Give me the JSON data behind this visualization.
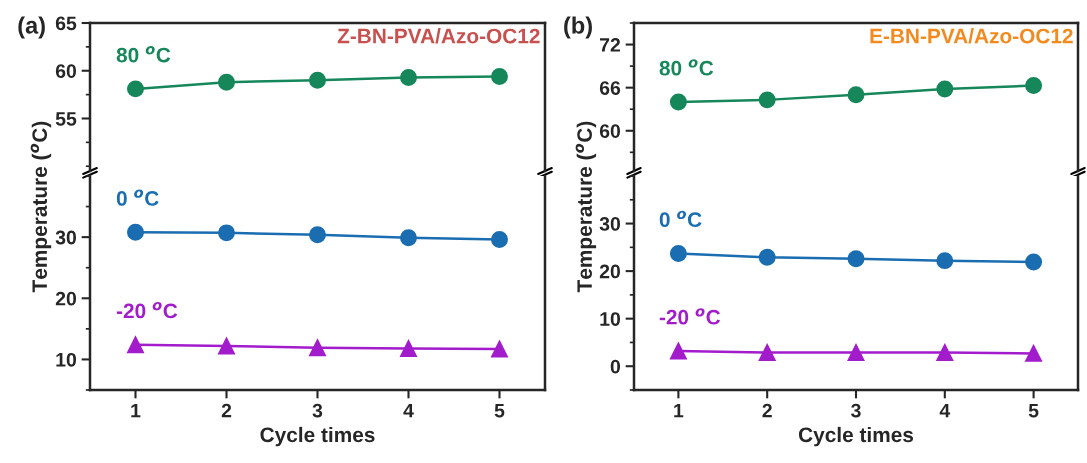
{
  "chart_data": [
    {
      "type": "line",
      "title": "Z-BN-PVA/Azo-OC12",
      "annotations": [
        "(a)"
      ],
      "x": [
        1,
        2,
        3,
        4,
        5
      ],
      "xlim": [
        0.5,
        5.5
      ],
      "xticks": [
        1,
        2,
        3,
        4,
        5
      ],
      "ylim": [
        49.5,
        65
      ],
      "yticks": [
        55,
        60,
        65
      ],
      "tick_labels": "y",
      "grid": false,
      "legend": false,
      "line_style": "solid",
      "series": [
        {
          "name": "80 $^{o}$C",
          "color": "#16875a",
          "values": [
            58.1,
            58.8,
            59.0,
            59.3,
            59.4
          ],
          "marker": "circle"
        }
      ]
    },
    {
      "type": "line",
      "xlabel": "Cycle times",
      "ylabel": "Temperature ($^{o}$C)",
      "x": [
        1,
        2,
        3,
        4,
        5
      ],
      "xlim": [
        0.5,
        5.5
      ],
      "xticks": [
        1,
        2,
        3,
        4,
        5
      ],
      "ylim": [
        5,
        40
      ],
      "yticks": [
        10,
        20,
        30
      ],
      "grid": false,
      "legend": false,
      "line_style": "solid",
      "series": [
        {
          "name": "0 $^{o}$C",
          "color": "#1a6db0",
          "values": [
            30.8,
            30.7,
            30.4,
            29.9,
            29.6
          ],
          "marker": "circle"
        },
        {
          "name": "-20 $^{o}$C",
          "color": "#a21ccc",
          "values": [
            12.4,
            12.2,
            11.9,
            11.8,
            11.7
          ],
          "marker": "triangle"
        }
      ]
    },
    {
      "type": "line",
      "title": "E-BN-PVA/Azo-OC12",
      "annotations": [
        "(b)"
      ],
      "x": [
        1,
        2,
        3,
        4,
        5
      ],
      "xlim": [
        0.5,
        5.5
      ],
      "xticks": [
        1,
        2,
        3,
        4,
        5
      ],
      "ylim": [
        54.4,
        75
      ],
      "yticks": [
        60,
        66,
        72
      ],
      "tick_labels": "y",
      "grid": false,
      "legend": false,
      "line_style": "solid",
      "series": [
        {
          "name": "80 $^{o}$C",
          "color": "#16875a",
          "values": [
            64.0,
            64.3,
            65.0,
            65.8,
            66.3
          ],
          "marker": "circle"
        }
      ]
    },
    {
      "type": "line",
      "xlabel": "Cycle times",
      "ylabel": "Temperature ($^{o}$C)",
      "x": [
        1,
        2,
        3,
        4,
        5
      ],
      "xlim": [
        0.5,
        5.5
      ],
      "xticks": [
        1,
        2,
        3,
        4,
        5
      ],
      "ylim": [
        -5,
        40
      ],
      "yticks": [
        0,
        10,
        20,
        30
      ],
      "grid": false,
      "legend": false,
      "line_style": "solid",
      "series": [
        {
          "name": "0 $^{o}$C",
          "color": "#1a6db0",
          "values": [
            23.7,
            22.9,
            22.6,
            22.2,
            21.9
          ],
          "marker": "circle"
        },
        {
          "name": "-20 $^{o}$C",
          "color": "#a21ccc",
          "values": [
            3.2,
            2.9,
            2.9,
            2.9,
            2.7
          ],
          "marker": "triangle"
        }
      ]
    }
  ]
}
